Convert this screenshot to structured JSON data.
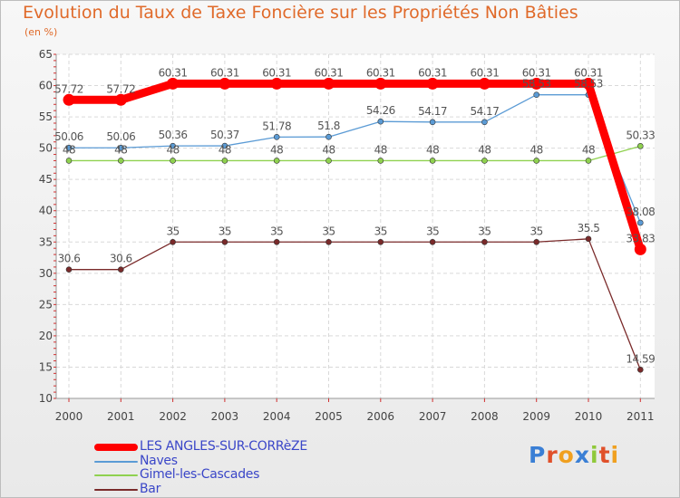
{
  "chart_data": {
    "type": "line",
    "title": "Evolution du Taux de Taxe Foncière sur les Propriétés Non Bâties",
    "ylabel": "(en %)",
    "xlabel": "",
    "ylim": [
      10,
      65
    ],
    "yticks": [
      10,
      15,
      20,
      25,
      30,
      35,
      40,
      45,
      50,
      55,
      60,
      65
    ],
    "categories": [
      "2000",
      "2001",
      "2002",
      "2003",
      "2004",
      "2005",
      "2006",
      "2007",
      "2008",
      "2009",
      "2010",
      "2011"
    ],
    "grid": true,
    "series": [
      {
        "name": "LES ANGLES-SUR-CORRèZE",
        "color": "#ff0000",
        "values": [
          57.72,
          57.72,
          60.31,
          60.31,
          60.31,
          60.31,
          60.31,
          60.31,
          60.31,
          60.31,
          60.31,
          33.83
        ],
        "labels": [
          "57.72",
          "57.72",
          "60.31",
          "60.31",
          "60.31",
          "60.31",
          "60.31",
          "60.31",
          "60.31",
          "60.31",
          "60.31",
          "33.83"
        ]
      },
      {
        "name": "Naves",
        "color": "#5b9bd5",
        "values": [
          50.06,
          50.06,
          50.36,
          50.37,
          51.78,
          51.8,
          54.26,
          54.17,
          54.17,
          58.53,
          58.53,
          38.08
        ],
        "labels": [
          "50.06",
          "50.06",
          "50.36",
          "50.37",
          "51.78",
          "51.8",
          "54.26",
          "54.17",
          "54.17",
          "58.53",
          "58.53",
          "38.08"
        ]
      },
      {
        "name": "Gimel-les-Cascades",
        "color": "#8fd14f",
        "values": [
          48,
          48,
          48,
          48,
          48,
          48,
          48,
          48,
          48,
          48,
          48,
          50.33
        ],
        "labels": [
          "48",
          "48",
          "48",
          "48",
          "48",
          "48",
          "48",
          "48",
          "48",
          "48",
          "48",
          "50.33"
        ]
      },
      {
        "name": "Bar",
        "color": "#7a2a2a",
        "values": [
          30.6,
          30.6,
          35,
          35,
          35,
          35,
          35,
          35,
          35,
          35,
          35.5,
          14.59
        ],
        "labels": [
          "30.6",
          "30.6",
          "35",
          "35",
          "35",
          "35",
          "35",
          "35",
          "35",
          "35",
          "35.5",
          "14.59"
        ]
      }
    ]
  },
  "legend": {
    "items": [
      {
        "label": "LES ANGLES-SUR-CORRèZE",
        "color": "#ff0000"
      },
      {
        "label": "Naves",
        "color": "#5b9bd5"
      },
      {
        "label": "Gimel-les-Cascades",
        "color": "#8fd14f"
      },
      {
        "label": "Bar",
        "color": "#7a2a2a"
      }
    ]
  },
  "logo": {
    "text": "Proxiti",
    "letters": [
      "P",
      "r",
      "o",
      "x",
      "i",
      "t",
      "i"
    ],
    "colors": [
      "#3a7fd5",
      "#e0502a",
      "#f0a020",
      "#3a7fd5",
      "#8fc93a",
      "#e0502a",
      "#f0a020"
    ]
  }
}
